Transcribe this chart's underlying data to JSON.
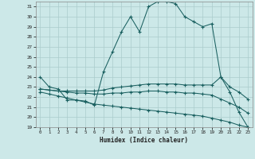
{
  "xlabel": "Humidex (Indice chaleur)",
  "bg_color": "#cce8e8",
  "grid_color": "#aacccc",
  "line_color": "#1a6060",
  "xlim": [
    -0.5,
    23.5
  ],
  "ylim": [
    19,
    31.5
  ],
  "yticks": [
    19,
    20,
    21,
    22,
    23,
    24,
    25,
    26,
    27,
    28,
    29,
    30,
    31
  ],
  "xticks": [
    0,
    1,
    2,
    3,
    4,
    5,
    6,
    7,
    8,
    9,
    10,
    11,
    12,
    13,
    14,
    15,
    16,
    17,
    18,
    19,
    20,
    21,
    22,
    23
  ],
  "series1_x": [
    0,
    1,
    2,
    3,
    4,
    5,
    6,
    7,
    8,
    9,
    10,
    11,
    12,
    13,
    14,
    15,
    16,
    17,
    18,
    19,
    20,
    21,
    22,
    23
  ],
  "series1_y": [
    24.0,
    23.0,
    22.8,
    21.7,
    21.7,
    21.6,
    21.2,
    24.5,
    26.5,
    28.5,
    30.0,
    28.5,
    31.0,
    31.5,
    31.5,
    31.3,
    30.0,
    29.5,
    29.0,
    29.3,
    24.0,
    22.5,
    20.5,
    19.0
  ],
  "series2_x": [
    0,
    1,
    2,
    3,
    4,
    5,
    6,
    7,
    8,
    9,
    10,
    11,
    12,
    13,
    14,
    15,
    16,
    17,
    18,
    19,
    20,
    21,
    22,
    23
  ],
  "series2_y": [
    22.8,
    22.7,
    22.6,
    22.6,
    22.6,
    22.6,
    22.6,
    22.7,
    22.9,
    23.0,
    23.1,
    23.2,
    23.3,
    23.3,
    23.3,
    23.3,
    23.2,
    23.2,
    23.2,
    23.2,
    24.0,
    23.0,
    22.5,
    21.8
  ],
  "series3_x": [
    0,
    1,
    2,
    3,
    4,
    5,
    6,
    7,
    8,
    9,
    10,
    11,
    12,
    13,
    14,
    15,
    16,
    17,
    18,
    19,
    20,
    21,
    22,
    23
  ],
  "series3_y": [
    22.8,
    22.7,
    22.6,
    22.5,
    22.4,
    22.4,
    22.3,
    22.3,
    22.4,
    22.4,
    22.5,
    22.5,
    22.6,
    22.6,
    22.5,
    22.5,
    22.4,
    22.4,
    22.3,
    22.2,
    21.8,
    21.4,
    21.0,
    20.4
  ],
  "series4_x": [
    0,
    1,
    2,
    3,
    4,
    5,
    6,
    7,
    8,
    9,
    10,
    11,
    12,
    13,
    14,
    15,
    16,
    17,
    18,
    19,
    20,
    21,
    22,
    23
  ],
  "series4_y": [
    22.5,
    22.3,
    22.1,
    21.9,
    21.7,
    21.5,
    21.3,
    21.2,
    21.1,
    21.0,
    20.9,
    20.8,
    20.7,
    20.6,
    20.5,
    20.4,
    20.3,
    20.2,
    20.1,
    19.9,
    19.7,
    19.5,
    19.2,
    19.0
  ]
}
